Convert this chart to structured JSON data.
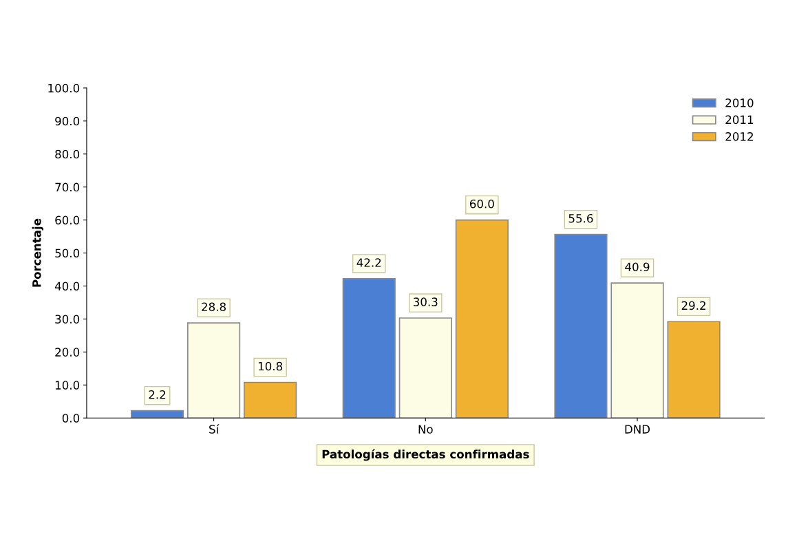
{
  "chart_data": {
    "type": "bar",
    "xlabel": "Patologías directas confirmadas",
    "ylabel": "Porcentaje",
    "categories": [
      "Sí",
      "No",
      "DND"
    ],
    "series": [
      {
        "name": "2010",
        "color": "#4a7fd4",
        "values": [
          2.2,
          42.2,
          55.6
        ],
        "value_labels": [
          "2.2",
          "42.2",
          "55.6"
        ]
      },
      {
        "name": "2011",
        "color": "#fdfde6",
        "values": [
          28.8,
          30.3,
          40.9
        ],
        "value_labels": [
          "28.8",
          "30.3",
          "40.9"
        ]
      },
      {
        "name": "2012",
        "color": "#f0b030",
        "values": [
          10.8,
          60.0,
          29.2
        ],
        "value_labels": [
          "10.8",
          "60.0",
          "29.2"
        ]
      }
    ],
    "ylim": [
      0,
      100
    ],
    "yticks": [
      {
        "value": 0,
        "label": "0.0"
      },
      {
        "value": 10,
        "label": "10.0"
      },
      {
        "value": 20,
        "label": "20.0"
      },
      {
        "value": 30,
        "label": "30.0"
      },
      {
        "value": 40,
        "label": "40.0"
      },
      {
        "value": 50,
        "label": "50.0"
      },
      {
        "value": 60,
        "label": "60.0"
      },
      {
        "value": 70,
        "label": "70.0"
      },
      {
        "value": 80,
        "label": "80.0"
      },
      {
        "value": 90,
        "label": "90.0"
      },
      {
        "value": 100,
        "label": "100.0"
      }
    ],
    "grid": false,
    "legend": "top right"
  }
}
